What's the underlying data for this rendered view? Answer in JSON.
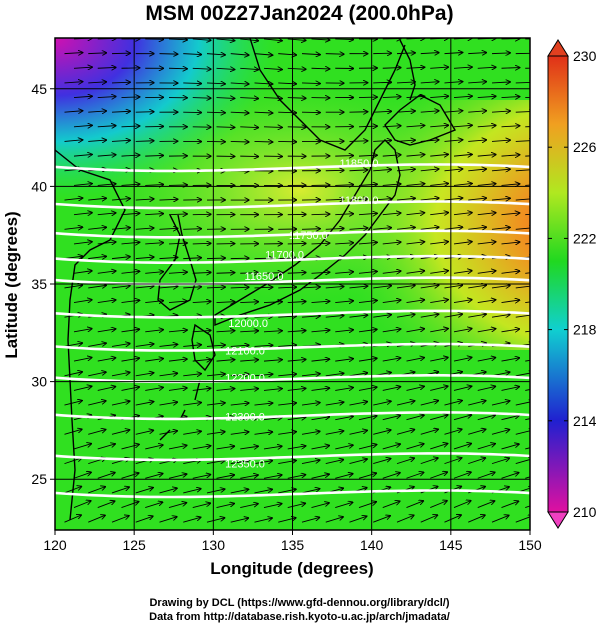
{
  "title": "MSM 00Z27Jan2024 (200.0hPa)",
  "map": {
    "lon_range": [
      120,
      150
    ],
    "lat_range": [
      22.4,
      47.6
    ],
    "x_ticks": [
      120,
      125,
      130,
      135,
      140,
      145,
      150
    ],
    "y_ticks": [
      25,
      30,
      35,
      40,
      45
    ],
    "xlabel": "Longitude (degrees)",
    "ylabel": "Latitude  (degrees)",
    "variables": [
      "temperature",
      "wind",
      "geopotential height"
    ],
    "contour_labels": [
      {
        "text": "11850.0",
        "lon": 139.2,
        "lat": 41.0
      },
      {
        "text": "11800.0",
        "lon": 139.2,
        "lat": 39.1
      },
      {
        "text": "11750.0",
        "lon": 136.0,
        "lat": 37.3
      },
      {
        "text": "11700.0",
        "lon": 134.5,
        "lat": 36.3
      },
      {
        "text": "11650.0",
        "lon": 133.2,
        "lat": 35.2
      },
      {
        "text": "12000.0",
        "lon": 132.2,
        "lat": 32.8
      },
      {
        "text": "12100.0",
        "lon": 132.0,
        "lat": 31.4
      },
      {
        "text": "12200.0",
        "lon": 132.0,
        "lat": 30.0
      },
      {
        "text": "12300.0",
        "lon": 132.0,
        "lat": 28.0
      },
      {
        "text": "12350.0",
        "lon": 132.0,
        "lat": 25.6
      }
    ]
  },
  "colorbar": {
    "min": 210,
    "max": 230,
    "tick_labels": [
      "230",
      "226",
      "222",
      "218",
      "214",
      "210"
    ],
    "colors": [
      "#e01090",
      "#1040e0",
      "#10d0d0",
      "#20e020",
      "#e0f020",
      "#f08020",
      "#e03018"
    ]
  },
  "credits": [
    "Drawing by DCL (https://www.gfd-dennou.org/library/dcl/)",
    "Data from http://database.rish.kyoto-u.ac.jp/arch/jmadata/"
  ]
}
